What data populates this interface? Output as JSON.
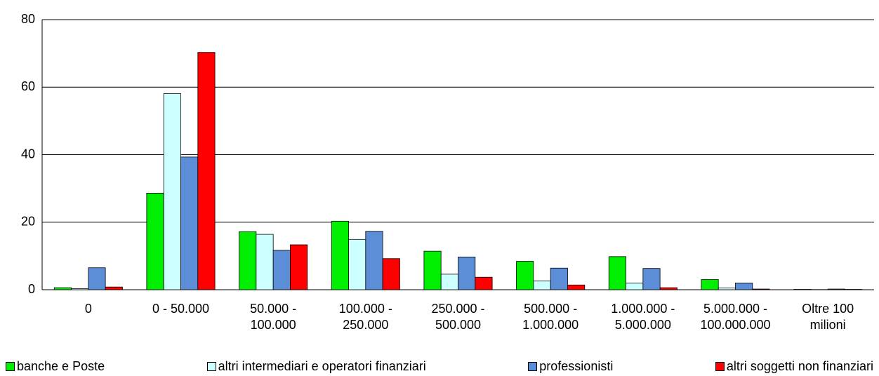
{
  "chart_data": {
    "type": "bar",
    "categories": [
      "0",
      "0 - 50.000",
      "50.000 - 100.000",
      "100.000 - 250.000",
      "250.000 - 500.000",
      "500.000 - 1.000.000",
      "1.000.000 - 5.000.000",
      "5.000.000 - 100.000.000",
      "Oltre 100 milioni"
    ],
    "series": [
      {
        "name": "banche e Poste",
        "color": "#00ee00",
        "values": [
          0.6,
          28.6,
          17.2,
          20.3,
          11.4,
          8.4,
          9.8,
          3.0,
          0.1
        ]
      },
      {
        "name": "altri intermediari e operatori finanziari",
        "color": "#ccffff",
        "values": [
          0.3,
          58.1,
          16.4,
          14.9,
          4.6,
          2.6,
          2.0,
          0.5,
          0.05
        ]
      },
      {
        "name": "professionisti",
        "color": "#5b8ed6",
        "values": [
          6.5,
          39.3,
          11.7,
          17.3,
          9.7,
          6.4,
          6.3,
          2.0,
          0.2
        ]
      },
      {
        "name": "altri soggetti non finanziari",
        "color": "#ff0000",
        "values": [
          0.8,
          70.3,
          13.3,
          9.2,
          3.7,
          1.4,
          0.6,
          0.2,
          0.1
        ]
      }
    ],
    "ylim": [
      0,
      80
    ],
    "yticks": [
      0,
      20,
      40,
      60,
      80
    ],
    "grid": true
  }
}
